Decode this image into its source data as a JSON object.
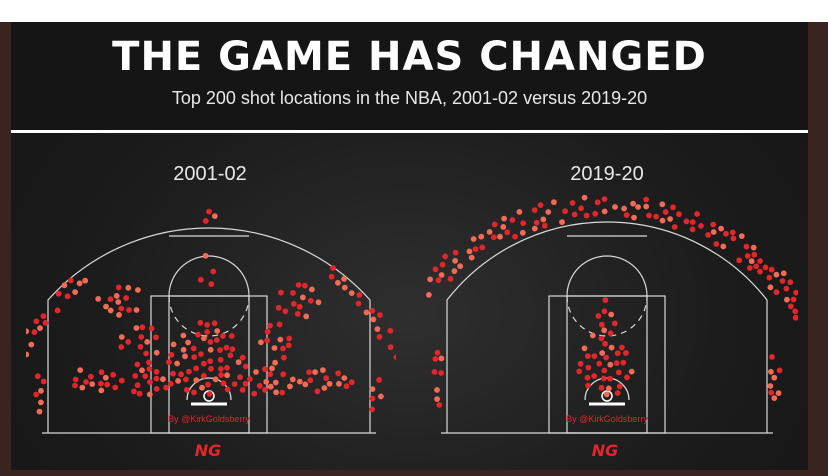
{
  "header": {
    "title": "THE GAME HAS CHANGED",
    "subtitle": "Top 200 shot locations in the NBA, 2001-02 versus 2019-20"
  },
  "colors": {
    "dot": "#e3262c",
    "dot_highlight": "#f26b57",
    "court_line": "#d9d9d9",
    "background": "#1c1c1c",
    "credit": "#e3262c"
  },
  "chart_data": [
    {
      "type": "scatter",
      "title": "2001-02",
      "credit": "By @KirkGoldsberry",
      "logo_text": "NG",
      "zones": [
        {
          "zone": "restricted-area-paint",
          "share": "heavy"
        },
        {
          "zone": "short-baseline-left",
          "share": "medium"
        },
        {
          "zone": "short-baseline-right",
          "share": "medium"
        },
        {
          "zone": "midrange-elbow-left",
          "share": "medium"
        },
        {
          "zone": "midrange-elbow-right",
          "share": "medium"
        },
        {
          "zone": "top-of-key-long-two",
          "share": "light"
        },
        {
          "zone": "three-wing-left",
          "share": "medium"
        },
        {
          "zone": "three-wing-right",
          "share": "medium"
        },
        {
          "zone": "three-top",
          "share": "light"
        },
        {
          "zone": "corner-three-left",
          "share": "light"
        },
        {
          "zone": "corner-three-right",
          "share": "light"
        }
      ]
    },
    {
      "type": "scatter",
      "title": "2019-20",
      "credit": "By @KirkGoldsberry",
      "logo_text": "NG",
      "zones": [
        {
          "zone": "restricted-area-paint",
          "share": "heavy"
        },
        {
          "zone": "three-arc-full",
          "share": "heavy"
        },
        {
          "zone": "corner-three-left",
          "share": "medium"
        },
        {
          "zone": "corner-three-right",
          "share": "medium"
        }
      ]
    }
  ]
}
